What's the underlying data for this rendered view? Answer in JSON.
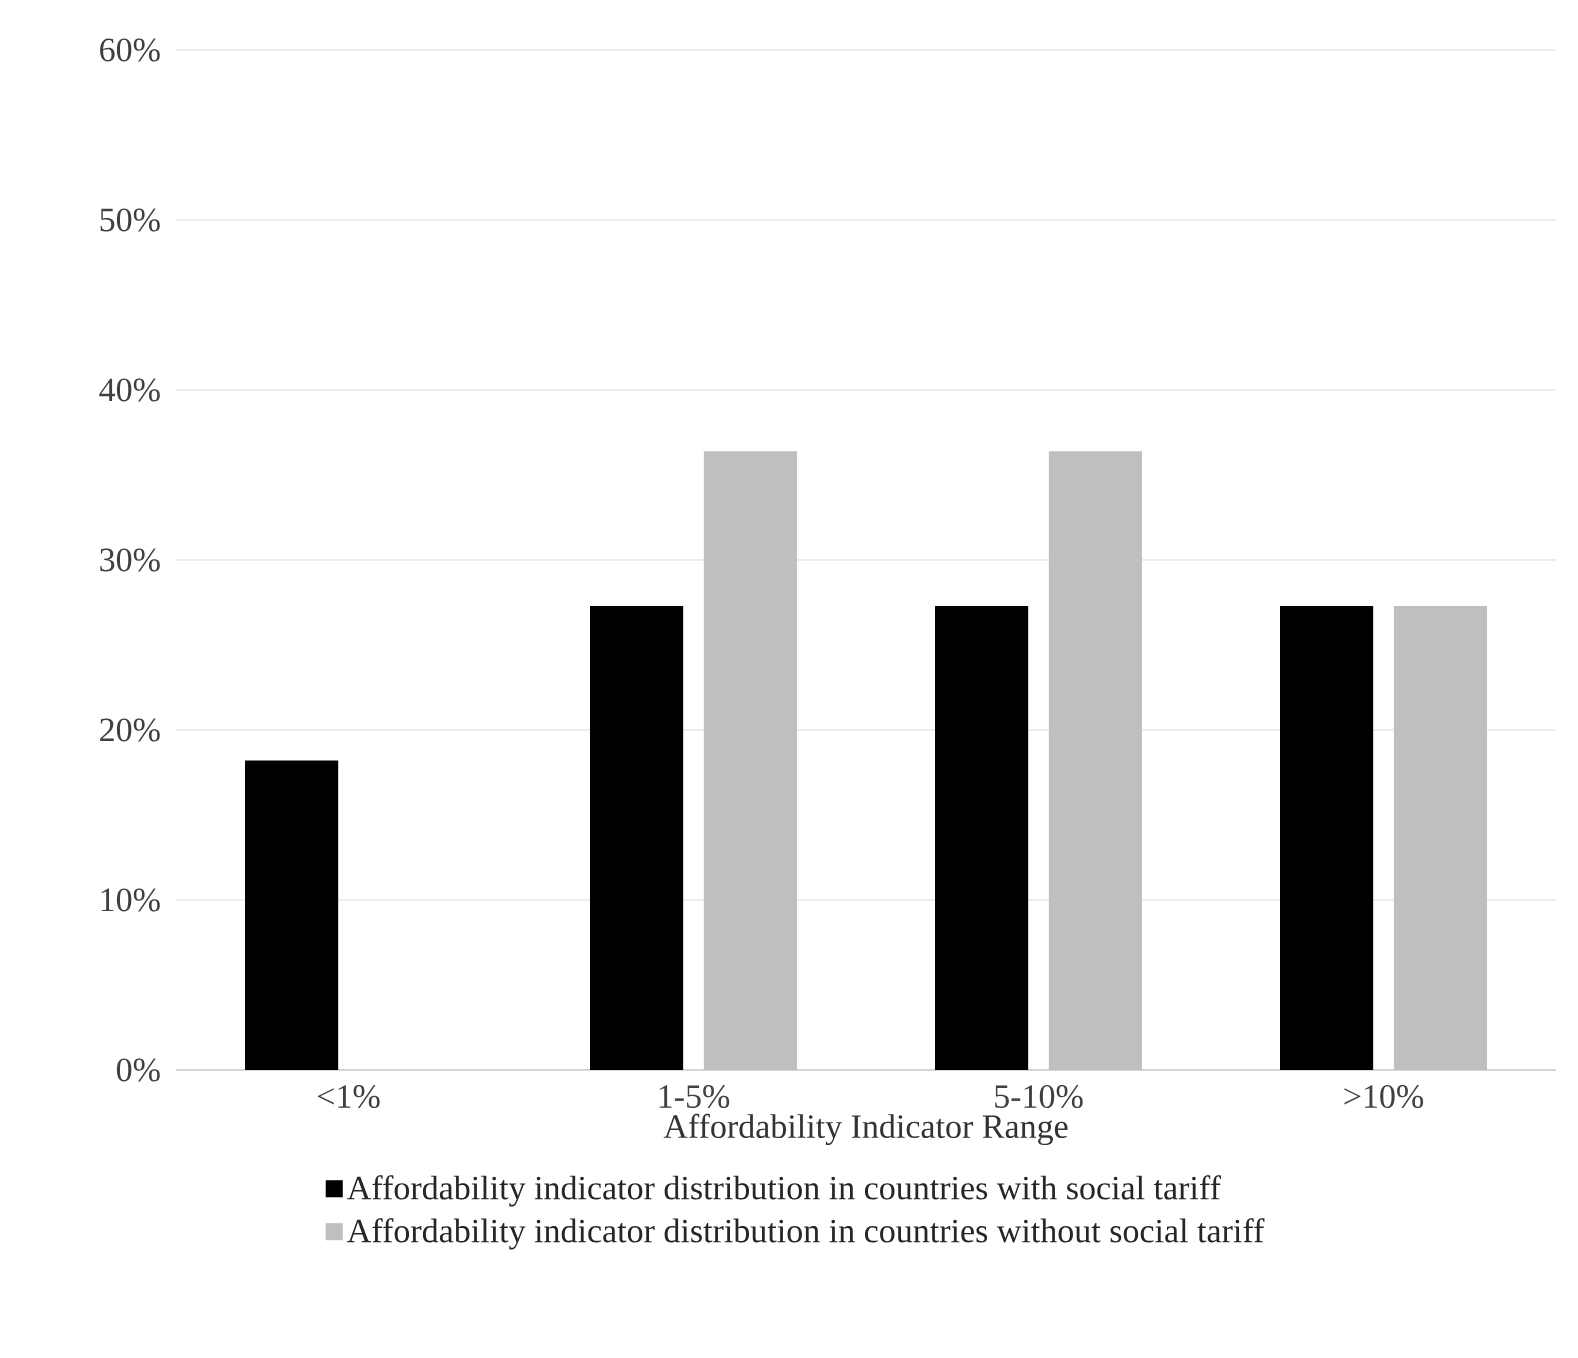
{
  "chart_data": {
    "type": "bar",
    "xlabel": "Affordability Indicator Range",
    "categories": [
      "<1%",
      "1-5%",
      "5-10%",
      ">10%"
    ],
    "series": [
      {
        "name": "Affordability indicator distribution in countries with social tariff",
        "color": "#000000",
        "values": [
          18.2,
          27.3,
          27.3,
          27.3
        ]
      },
      {
        "name": "Affordability indicator distribution in countries without social tariff",
        "color": "#bfbfbf",
        "values": [
          0,
          36.4,
          36.4,
          27.3
        ]
      }
    ],
    "ylim": [
      0,
      60
    ],
    "yticks": [
      {
        "value": 0,
        "label": "0%"
      },
      {
        "value": 10,
        "label": "10%"
      },
      {
        "value": 20,
        "label": "20%"
      },
      {
        "value": 30,
        "label": "30%"
      },
      {
        "value": 40,
        "label": "40%"
      },
      {
        "value": 50,
        "label": "50%"
      },
      {
        "value": 60,
        "label": "60%"
      }
    ],
    "grid": "y",
    "legend": "bottom"
  }
}
